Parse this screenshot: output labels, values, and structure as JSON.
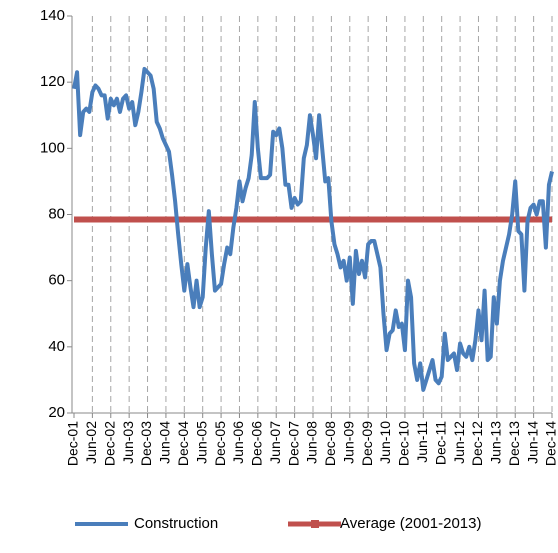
{
  "chart_data": {
    "type": "line",
    "categories": [
      "Dec-01",
      null,
      null,
      null,
      null,
      null,
      "Jun-02",
      null,
      null,
      null,
      null,
      null,
      "Dec-02",
      null,
      null,
      null,
      null,
      null,
      "Jun-03",
      null,
      null,
      null,
      null,
      null,
      "Dec-03",
      null,
      null,
      null,
      null,
      null,
      "Jun-04",
      null,
      null,
      null,
      null,
      null,
      "Dec-04",
      null,
      null,
      null,
      null,
      null,
      "Jun-05",
      null,
      null,
      null,
      null,
      null,
      "Dec-05",
      null,
      null,
      null,
      null,
      null,
      "Jun-06",
      null,
      null,
      null,
      null,
      null,
      "Dec-06",
      null,
      null,
      null,
      null,
      null,
      "Jun-07",
      null,
      null,
      null,
      null,
      null,
      "Dec-07",
      null,
      null,
      null,
      null,
      null,
      "Jun-08",
      null,
      null,
      null,
      null,
      null,
      "Dec-08",
      null,
      null,
      null,
      null,
      null,
      "Jun-09",
      null,
      null,
      null,
      null,
      null,
      "Dec-09",
      null,
      null,
      null,
      null,
      null,
      "Jun-10",
      null,
      null,
      null,
      null,
      null,
      "Dec-10",
      null,
      null,
      null,
      null,
      null,
      "Jun-11",
      null,
      null,
      null,
      null,
      null,
      "Dec-11",
      null,
      null,
      null,
      null,
      null,
      "Jun-12",
      null,
      null,
      null,
      null,
      null,
      "Dec-12",
      null,
      null,
      null,
      null,
      null,
      "Jun-13",
      null,
      null,
      null,
      null,
      null,
      "Dec-13",
      null,
      null,
      null,
      null,
      null,
      "Jun-14",
      null,
      null,
      null,
      null,
      null,
      "Dec-14"
    ],
    "series": [
      {
        "name": "Construction",
        "color": "#4a7ebb",
        "values": [
          118,
          123,
          104,
          111,
          112,
          111,
          117,
          119,
          118,
          116,
          116,
          109,
          115,
          113,
          115,
          111,
          115,
          116,
          112,
          114,
          107,
          111,
          117,
          124,
          123,
          122,
          118,
          108,
          106,
          103,
          101,
          99,
          92,
          84,
          74,
          65,
          57,
          65,
          58,
          52,
          60,
          52,
          55,
          70,
          81,
          68,
          57,
          58,
          59,
          65,
          70,
          68,
          76,
          82,
          90,
          84,
          88,
          91,
          98,
          114,
          100,
          91,
          91,
          91,
          92,
          105,
          104,
          106,
          100,
          89,
          89,
          82,
          85,
          83,
          84,
          97,
          101,
          110,
          104,
          97,
          110,
          100,
          90,
          91,
          78,
          71,
          68,
          64,
          66,
          60,
          67,
          53,
          69,
          62,
          66,
          61,
          71,
          72,
          72,
          68,
          64,
          50,
          39,
          44,
          45,
          51,
          46,
          47,
          39,
          60,
          55,
          35,
          30,
          35,
          27,
          30,
          33,
          36,
          30,
          29,
          31,
          44,
          36,
          37,
          38,
          33,
          41,
          38,
          37,
          40,
          36,
          42,
          51,
          42,
          57,
          36,
          37,
          55,
          47,
          60,
          66,
          70,
          74,
          80,
          90,
          75,
          74,
          57,
          78,
          82,
          83,
          80,
          84,
          84,
          70,
          89,
          93
        ]
      },
      {
        "name": "Average (2001-2013)",
        "color": "#c0504d",
        "values": [
          78.5,
          78.5,
          78.5,
          78.5,
          78.5,
          78.5,
          78.5,
          78.5,
          78.5,
          78.5,
          78.5,
          78.5,
          78.5,
          78.5,
          78.5,
          78.5,
          78.5,
          78.5,
          78.5,
          78.5,
          78.5,
          78.5,
          78.5,
          78.5,
          78.5,
          78.5,
          78.5,
          78.5,
          78.5,
          78.5,
          78.5,
          78.5,
          78.5,
          78.5,
          78.5,
          78.5,
          78.5,
          78.5,
          78.5,
          78.5,
          78.5,
          78.5,
          78.5,
          78.5,
          78.5,
          78.5,
          78.5,
          78.5,
          78.5,
          78.5,
          78.5,
          78.5,
          78.5,
          78.5,
          78.5,
          78.5,
          78.5,
          78.5,
          78.5,
          78.5,
          78.5,
          78.5,
          78.5,
          78.5,
          78.5,
          78.5,
          78.5,
          78.5,
          78.5,
          78.5,
          78.5,
          78.5,
          78.5,
          78.5,
          78.5,
          78.5,
          78.5,
          78.5,
          78.5,
          78.5,
          78.5,
          78.5,
          78.5,
          78.5,
          78.5,
          78.5,
          78.5,
          78.5,
          78.5,
          78.5,
          78.5,
          78.5,
          78.5,
          78.5,
          78.5,
          78.5,
          78.5,
          78.5,
          78.5,
          78.5,
          78.5,
          78.5,
          78.5,
          78.5,
          78.5,
          78.5,
          78.5,
          78.5,
          78.5,
          78.5,
          78.5,
          78.5,
          78.5,
          78.5,
          78.5,
          78.5,
          78.5,
          78.5,
          78.5,
          78.5,
          78.5,
          78.5,
          78.5,
          78.5,
          78.5,
          78.5,
          78.5,
          78.5,
          78.5,
          78.5,
          78.5,
          78.5,
          78.5,
          78.5,
          78.5,
          78.5,
          78.5,
          78.5,
          78.5,
          78.5,
          78.5,
          78.5,
          78.5,
          78.5,
          78.5,
          78.5,
          78.5,
          78.5,
          78.5,
          78.5,
          78.5,
          78.5,
          78.5,
          78.5,
          78.5,
          78.5,
          78.5
        ]
      }
    ],
    "ylim": [
      20,
      140
    ],
    "yticks": [
      20,
      40,
      60,
      80,
      100,
      120,
      140
    ],
    "grid": "x-dashed",
    "legend": "bottom"
  }
}
